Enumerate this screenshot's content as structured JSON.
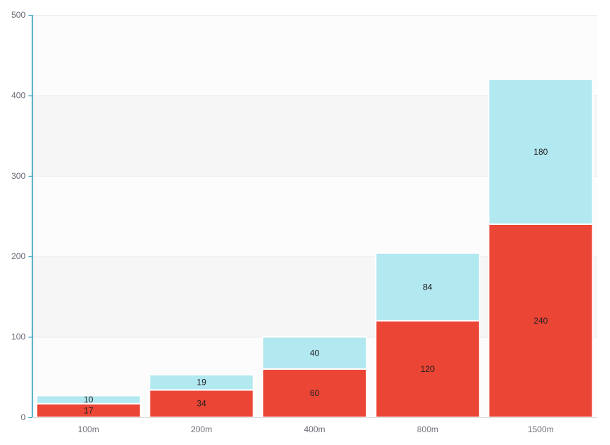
{
  "chart_data": {
    "type": "bar",
    "stacked": true,
    "categories": [
      "100m",
      "200m",
      "400m",
      "800m",
      "1500m"
    ],
    "series": [
      {
        "values": [
          17,
          34,
          60,
          120,
          240
        ],
        "color": "#eb4535"
      },
      {
        "values": [
          10,
          19,
          40,
          84,
          180
        ],
        "color": "#b2e8f0"
      }
    ],
    "ylim": [
      0,
      500
    ],
    "yticks": [
      0,
      100,
      200,
      300,
      400,
      500
    ],
    "grid": true,
    "split_area_colors": [
      "#fcfcfd",
      "#f6f6f7"
    ],
    "axis_color": "#2e9fbe",
    "title": "",
    "xlabel": "",
    "ylabel": ""
  }
}
